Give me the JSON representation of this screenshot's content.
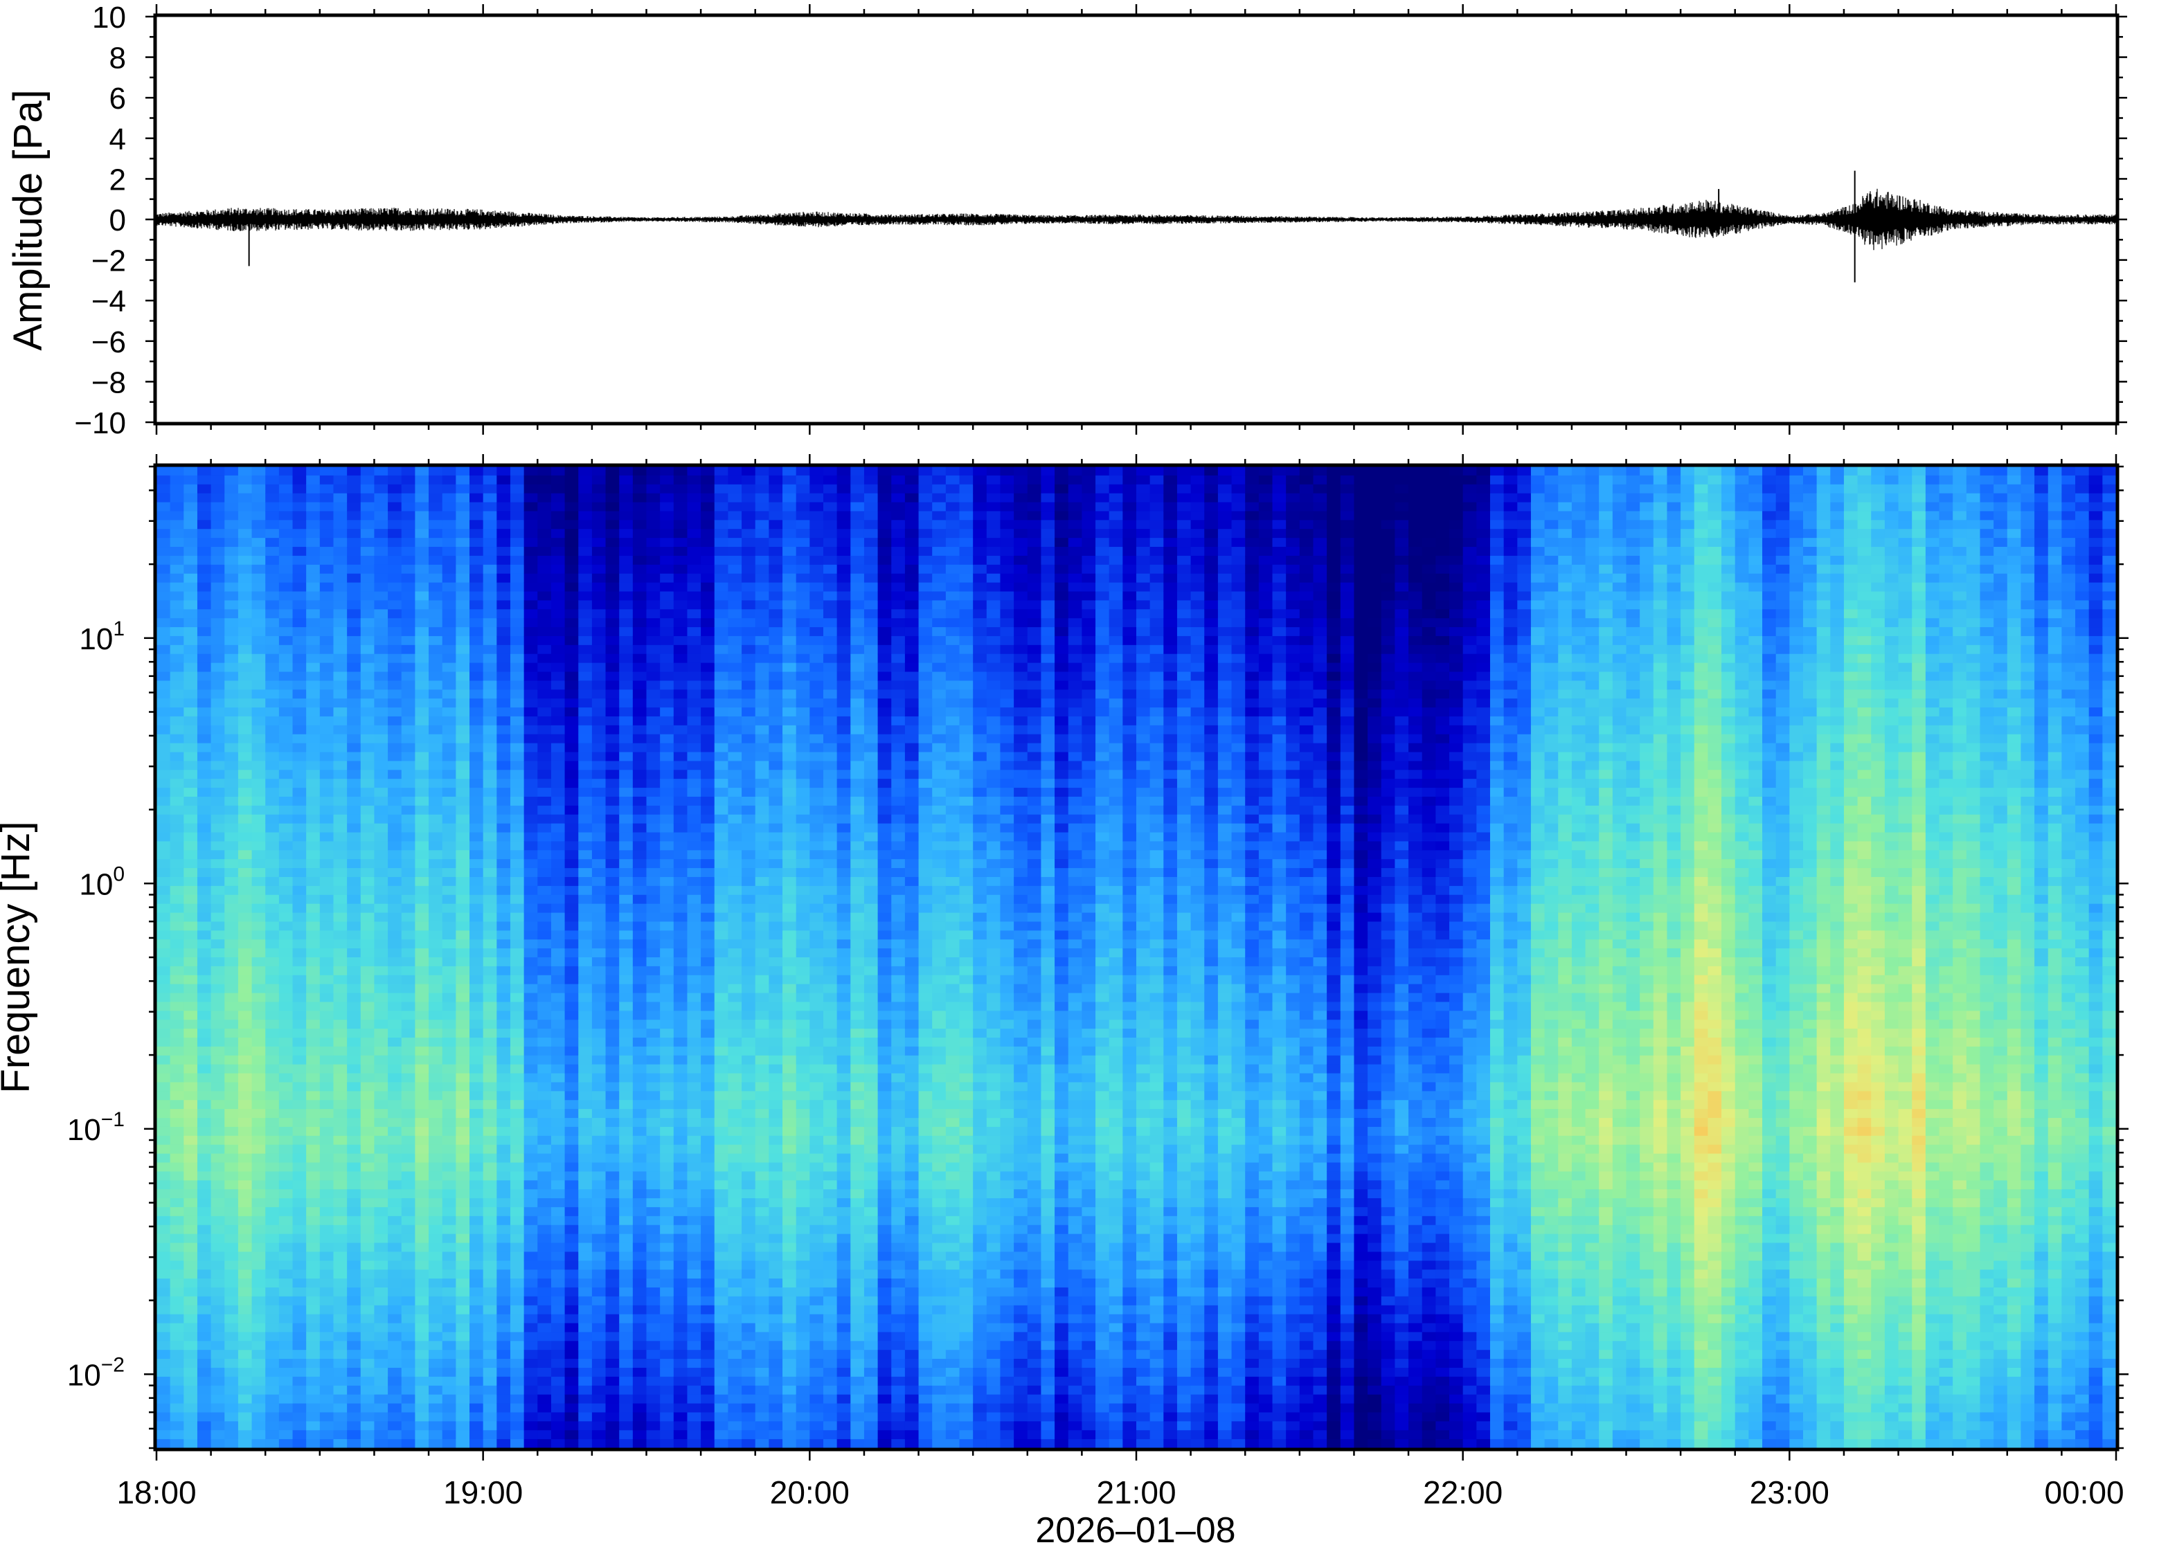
{
  "chart_data": [
    {
      "type": "line",
      "panel": "waveform",
      "title": "",
      "ylabel": "Amplitude [Pa]",
      "ylim": [
        -10,
        10
      ],
      "yticks": [
        10,
        8,
        6,
        4,
        2,
        0,
        -2,
        -4,
        -6,
        -8,
        -10
      ],
      "ytick_labels": [
        "10",
        "8",
        "6",
        "4",
        "2",
        "0",
        "−2",
        "−4",
        "−6",
        "−8",
        "−10"
      ],
      "xlim": [
        "18:00",
        "00:00"
      ],
      "envelope": {
        "time_hours": [
          18.0,
          18.25,
          18.5,
          18.75,
          19.0,
          19.25,
          19.5,
          19.75,
          20.0,
          20.25,
          20.5,
          20.75,
          21.0,
          21.25,
          21.5,
          21.75,
          22.0,
          22.25,
          22.5,
          22.75,
          23.0,
          23.1,
          23.2,
          23.25,
          23.35,
          23.5,
          23.75,
          24.0
        ],
        "half_amplitude_pa": [
          0.3,
          0.6,
          0.5,
          0.6,
          0.5,
          0.2,
          0.1,
          0.15,
          0.4,
          0.25,
          0.3,
          0.2,
          0.25,
          0.2,
          0.15,
          0.1,
          0.15,
          0.3,
          0.5,
          1.0,
          0.2,
          0.3,
          0.8,
          1.6,
          1.2,
          0.5,
          0.25,
          0.25
        ]
      },
      "peaks": [
        {
          "time": "18:17",
          "min_pa": -2.3
        },
        {
          "time": "22:47",
          "max_pa": 1.5
        },
        {
          "time": "23:12",
          "max_pa": 2.4,
          "min_pa": -3.1
        }
      ],
      "color": "#000000",
      "grid": false
    },
    {
      "type": "heatmap",
      "panel": "spectrogram",
      "title": "",
      "ylabel": "Frequency [Hz]",
      "xlabel": "2026–01–08",
      "yscale": "log",
      "ylim": [
        0.005,
        50
      ],
      "yticks": [
        {
          "base": "10",
          "exp": "1",
          "value": 10
        },
        {
          "base": "10",
          "exp": "0",
          "value": 1
        },
        {
          "base": "10",
          "exp": "−1",
          "value": 0.1
        },
        {
          "base": "10",
          "exp": "−2",
          "value": 0.01
        }
      ],
      "xticks": [
        "18:00",
        "19:00",
        "20:00",
        "21:00",
        "22:00",
        "23:00",
        "00:00"
      ],
      "colormap": [
        "#000080",
        "#0000d0",
        "#1060ff",
        "#30b0ff",
        "#50e0e0",
        "#90f0a0",
        "#e0f080",
        "#ffc050",
        "#ff8040",
        "#f04040"
      ],
      "time_bins_hours": [
        18.0,
        18.5,
        19.0,
        19.25,
        19.5,
        20.0,
        20.25,
        20.5,
        20.75,
        21.0,
        21.25,
        21.5,
        21.75,
        22.0,
        22.25,
        22.5,
        22.75,
        23.0,
        23.25,
        23.5,
        24.0
      ],
      "relative_power": [
        0.55,
        0.55,
        0.5,
        0.25,
        0.3,
        0.45,
        0.35,
        0.4,
        0.3,
        0.35,
        0.3,
        0.28,
        0.1,
        0.3,
        0.5,
        0.6,
        0.75,
        0.45,
        0.8,
        0.6,
        0.45
      ],
      "grid": false
    }
  ]
}
